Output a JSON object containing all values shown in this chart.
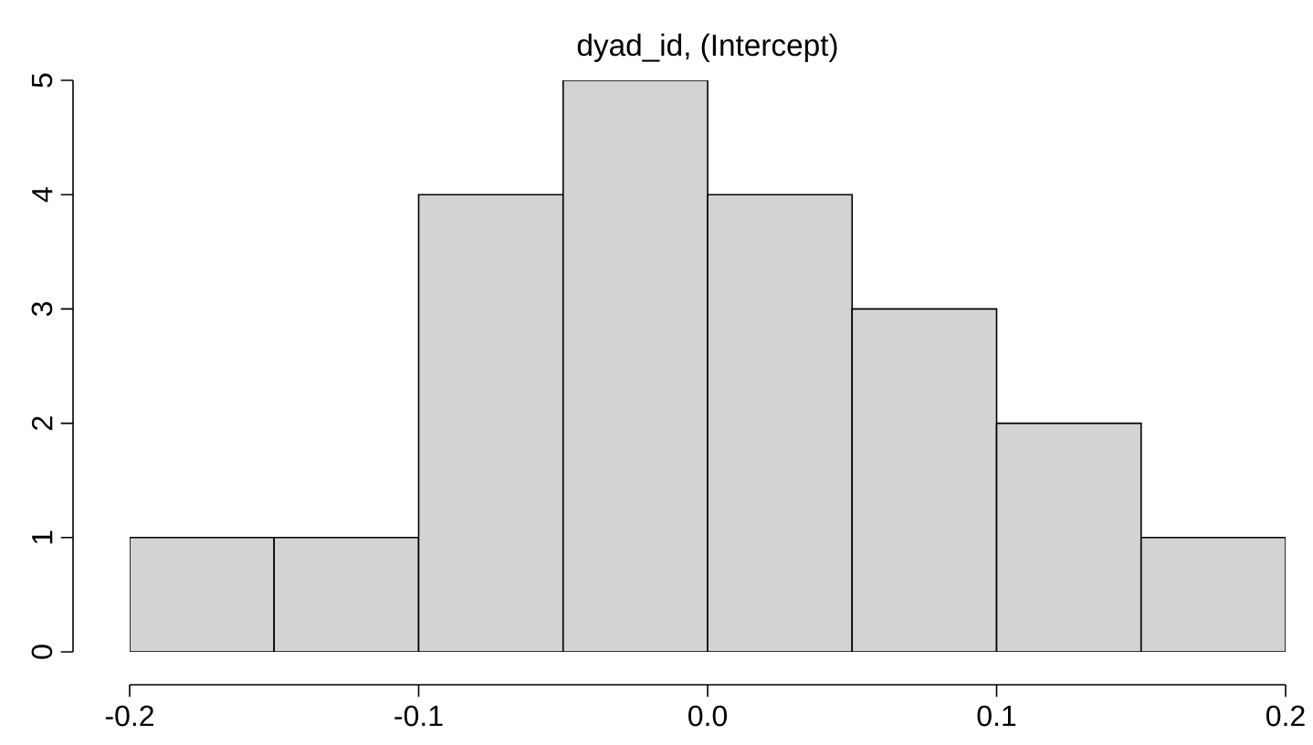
{
  "chart_data": {
    "type": "histogram",
    "title": "dyad_id, (Intercept)",
    "bins": [
      -0.2,
      -0.15,
      -0.1,
      -0.05,
      0.0,
      0.05,
      0.1,
      0.15,
      0.2
    ],
    "values": [
      1,
      1,
      4,
      5,
      4,
      3,
      2,
      1
    ],
    "color": "#d3d3d3",
    "xlim": [
      -0.2,
      0.2
    ],
    "xticks": [
      {
        "value": -0.2,
        "label": "-0.2"
      },
      {
        "value": -0.1,
        "label": "-0.1"
      },
      {
        "value": 0.0,
        "label": "0.0"
      },
      {
        "value": 0.1,
        "label": "0.1"
      },
      {
        "value": 0.2,
        "label": "0.2"
      }
    ],
    "ylim": [
      0,
      5
    ],
    "yticks": [
      0,
      1,
      2,
      3,
      4,
      5
    ],
    "grid": false
  }
}
